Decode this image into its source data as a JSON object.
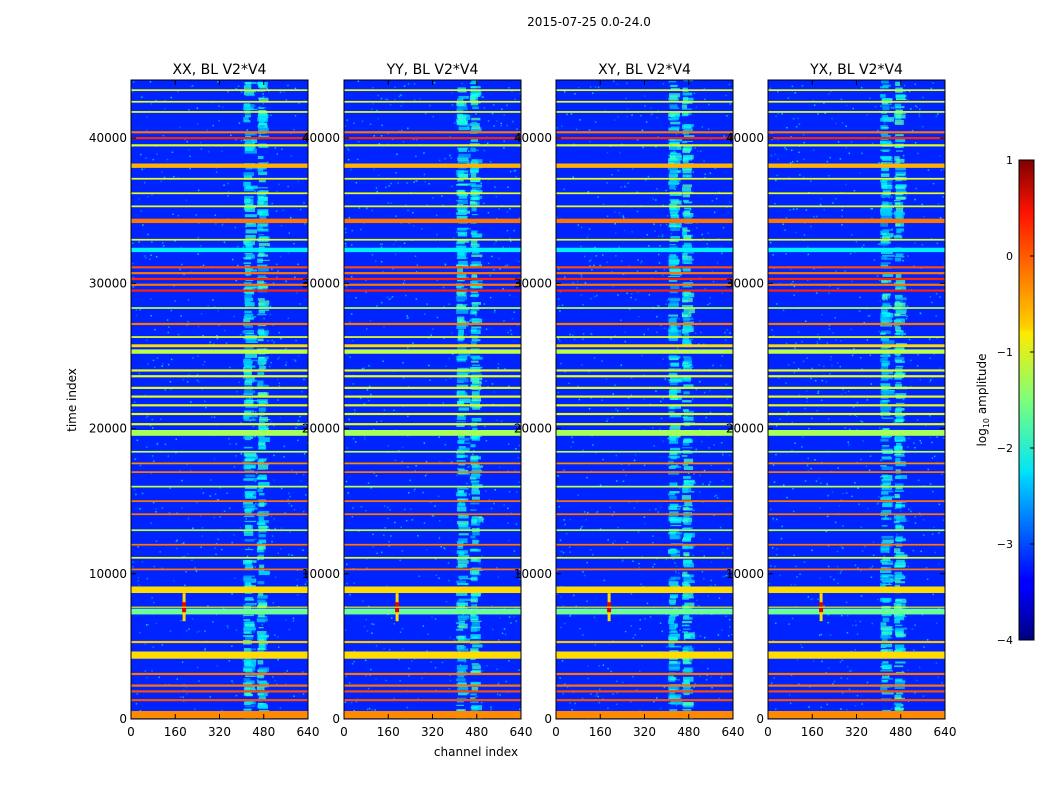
{
  "chart_data": {
    "type": "heatmap",
    "suptitle": "2015-07-25 0.0-24.0",
    "xlabel": "channel index",
    "ylabel": "time index",
    "xlim": [
      0,
      640
    ],
    "ylim": [
      0,
      44000
    ],
    "xticks": [
      0,
      160,
      320,
      480,
      640
    ],
    "yticks": [
      0,
      10000,
      20000,
      30000,
      40000
    ],
    "panels": [
      {
        "title": "XX, BL V2*V4",
        "polarization": "XX"
      },
      {
        "title": "YY, BL V2*V4",
        "polarization": "YY"
      },
      {
        "title": "XY, BL V2*V4",
        "polarization": "XY"
      },
      {
        "title": "YX, BL V2*V4",
        "polarization": "YX"
      }
    ],
    "background_log_amplitude": -3.2,
    "rfi_channel_bands": [
      {
        "start": 405,
        "end": 455,
        "log_amplitude": -2.2
      },
      {
        "start": 455,
        "end": 500,
        "log_amplitude": -2.1
      }
    ],
    "horizontal_features": [
      {
        "time": 300,
        "width": 500,
        "log_amplitude": -0.3
      },
      {
        "time": 1300,
        "width": 150,
        "log_amplitude": 0.0
      },
      {
        "time": 1900,
        "width": 150,
        "log_amplitude": 0.0
      },
      {
        "time": 2300,
        "width": 150,
        "log_amplitude": -0.2
      },
      {
        "time": 3100,
        "width": 150,
        "log_amplitude": -0.2
      },
      {
        "time": 4400,
        "width": 500,
        "log_amplitude": -0.7
      },
      {
        "time": 5300,
        "width": 150,
        "log_amplitude": -0.6
      },
      {
        "time": 7400,
        "width": 400,
        "log_amplitude": -1.6
      },
      {
        "time": 8900,
        "width": 450,
        "log_amplitude": -0.7
      },
      {
        "time": 10300,
        "width": 120,
        "log_amplitude": -0.2
      },
      {
        "time": 11100,
        "width": 120,
        "log_amplitude": -1.0
      },
      {
        "time": 12000,
        "width": 120,
        "log_amplitude": -0.2
      },
      {
        "time": 13000,
        "width": 120,
        "log_amplitude": -1.2
      },
      {
        "time": 14100,
        "width": 120,
        "log_amplitude": -0.2
      },
      {
        "time": 15000,
        "width": 120,
        "log_amplitude": -0.2
      },
      {
        "time": 16000,
        "width": 120,
        "log_amplitude": -1.2
      },
      {
        "time": 17000,
        "width": 120,
        "log_amplitude": -0.2
      },
      {
        "time": 17600,
        "width": 120,
        "log_amplitude": -0.3
      },
      {
        "time": 18400,
        "width": 120,
        "log_amplitude": -1.2
      },
      {
        "time": 19700,
        "width": 400,
        "log_amplitude": -1.3
      },
      {
        "time": 20300,
        "width": 150,
        "log_amplitude": -1.0
      },
      {
        "time": 21000,
        "width": 150,
        "log_amplitude": -1.0
      },
      {
        "time": 21600,
        "width": 150,
        "log_amplitude": -1.0
      },
      {
        "time": 22200,
        "width": 150,
        "log_amplitude": -1.0
      },
      {
        "time": 22800,
        "width": 150,
        "log_amplitude": -1.0
      },
      {
        "time": 23600,
        "width": 150,
        "log_amplitude": -1.0
      },
      {
        "time": 24000,
        "width": 150,
        "log_amplitude": -1.0
      },
      {
        "time": 25300,
        "width": 300,
        "log_amplitude": -1.2
      },
      {
        "time": 25700,
        "width": 200,
        "log_amplitude": -0.7
      },
      {
        "time": 26300,
        "width": 120,
        "log_amplitude": -1.0
      },
      {
        "time": 27200,
        "width": 150,
        "log_amplitude": -0.2
      },
      {
        "time": 28300,
        "width": 120,
        "log_amplitude": -1.2
      },
      {
        "time": 29500,
        "width": 150,
        "log_amplitude": 0.2
      },
      {
        "time": 29900,
        "width": 150,
        "log_amplitude": -0.2
      },
      {
        "time": 30300,
        "width": 150,
        "log_amplitude": 0.2
      },
      {
        "time": 30700,
        "width": 150,
        "log_amplitude": -0.2
      },
      {
        "time": 31100,
        "width": 150,
        "log_amplitude": 0.0
      },
      {
        "time": 32300,
        "width": 300,
        "log_amplitude": -2.2
      },
      {
        "time": 33000,
        "width": 120,
        "log_amplitude": -1.0
      },
      {
        "time": 34300,
        "width": 300,
        "log_amplitude": -0.2
      },
      {
        "time": 35300,
        "width": 120,
        "log_amplitude": -1.0
      },
      {
        "time": 36200,
        "width": 120,
        "log_amplitude": -1.0
      },
      {
        "time": 37200,
        "width": 120,
        "log_amplitude": -1.0
      },
      {
        "time": 38100,
        "width": 300,
        "log_amplitude": -0.5
      },
      {
        "time": 39500,
        "width": 150,
        "log_amplitude": -1.0
      },
      {
        "time": 40000,
        "width": 150,
        "log_amplitude": 0.2
      },
      {
        "time": 40400,
        "width": 150,
        "log_amplitude": -0.2
      },
      {
        "time": 41800,
        "width": 120,
        "log_amplitude": -1.0
      },
      {
        "time": 42500,
        "width": 120,
        "log_amplitude": -1.0
      },
      {
        "time": 43300,
        "width": 120,
        "log_amplitude": -1.0
      }
    ],
    "point_sources": [
      {
        "channel": 192,
        "time": 7700,
        "log_amplitude": 0.5
      }
    ],
    "colorbar": {
      "label_main": "log",
      "label_sub": "10",
      "label_rest": " amplitude",
      "min": -4,
      "max": 1,
      "ticks": [
        -4,
        -3,
        -2,
        -1,
        0,
        1
      ],
      "tick_labels": [
        "−4",
        "−3",
        "−2",
        "−1",
        "0",
        "1"
      ],
      "colormap": "jet"
    }
  }
}
